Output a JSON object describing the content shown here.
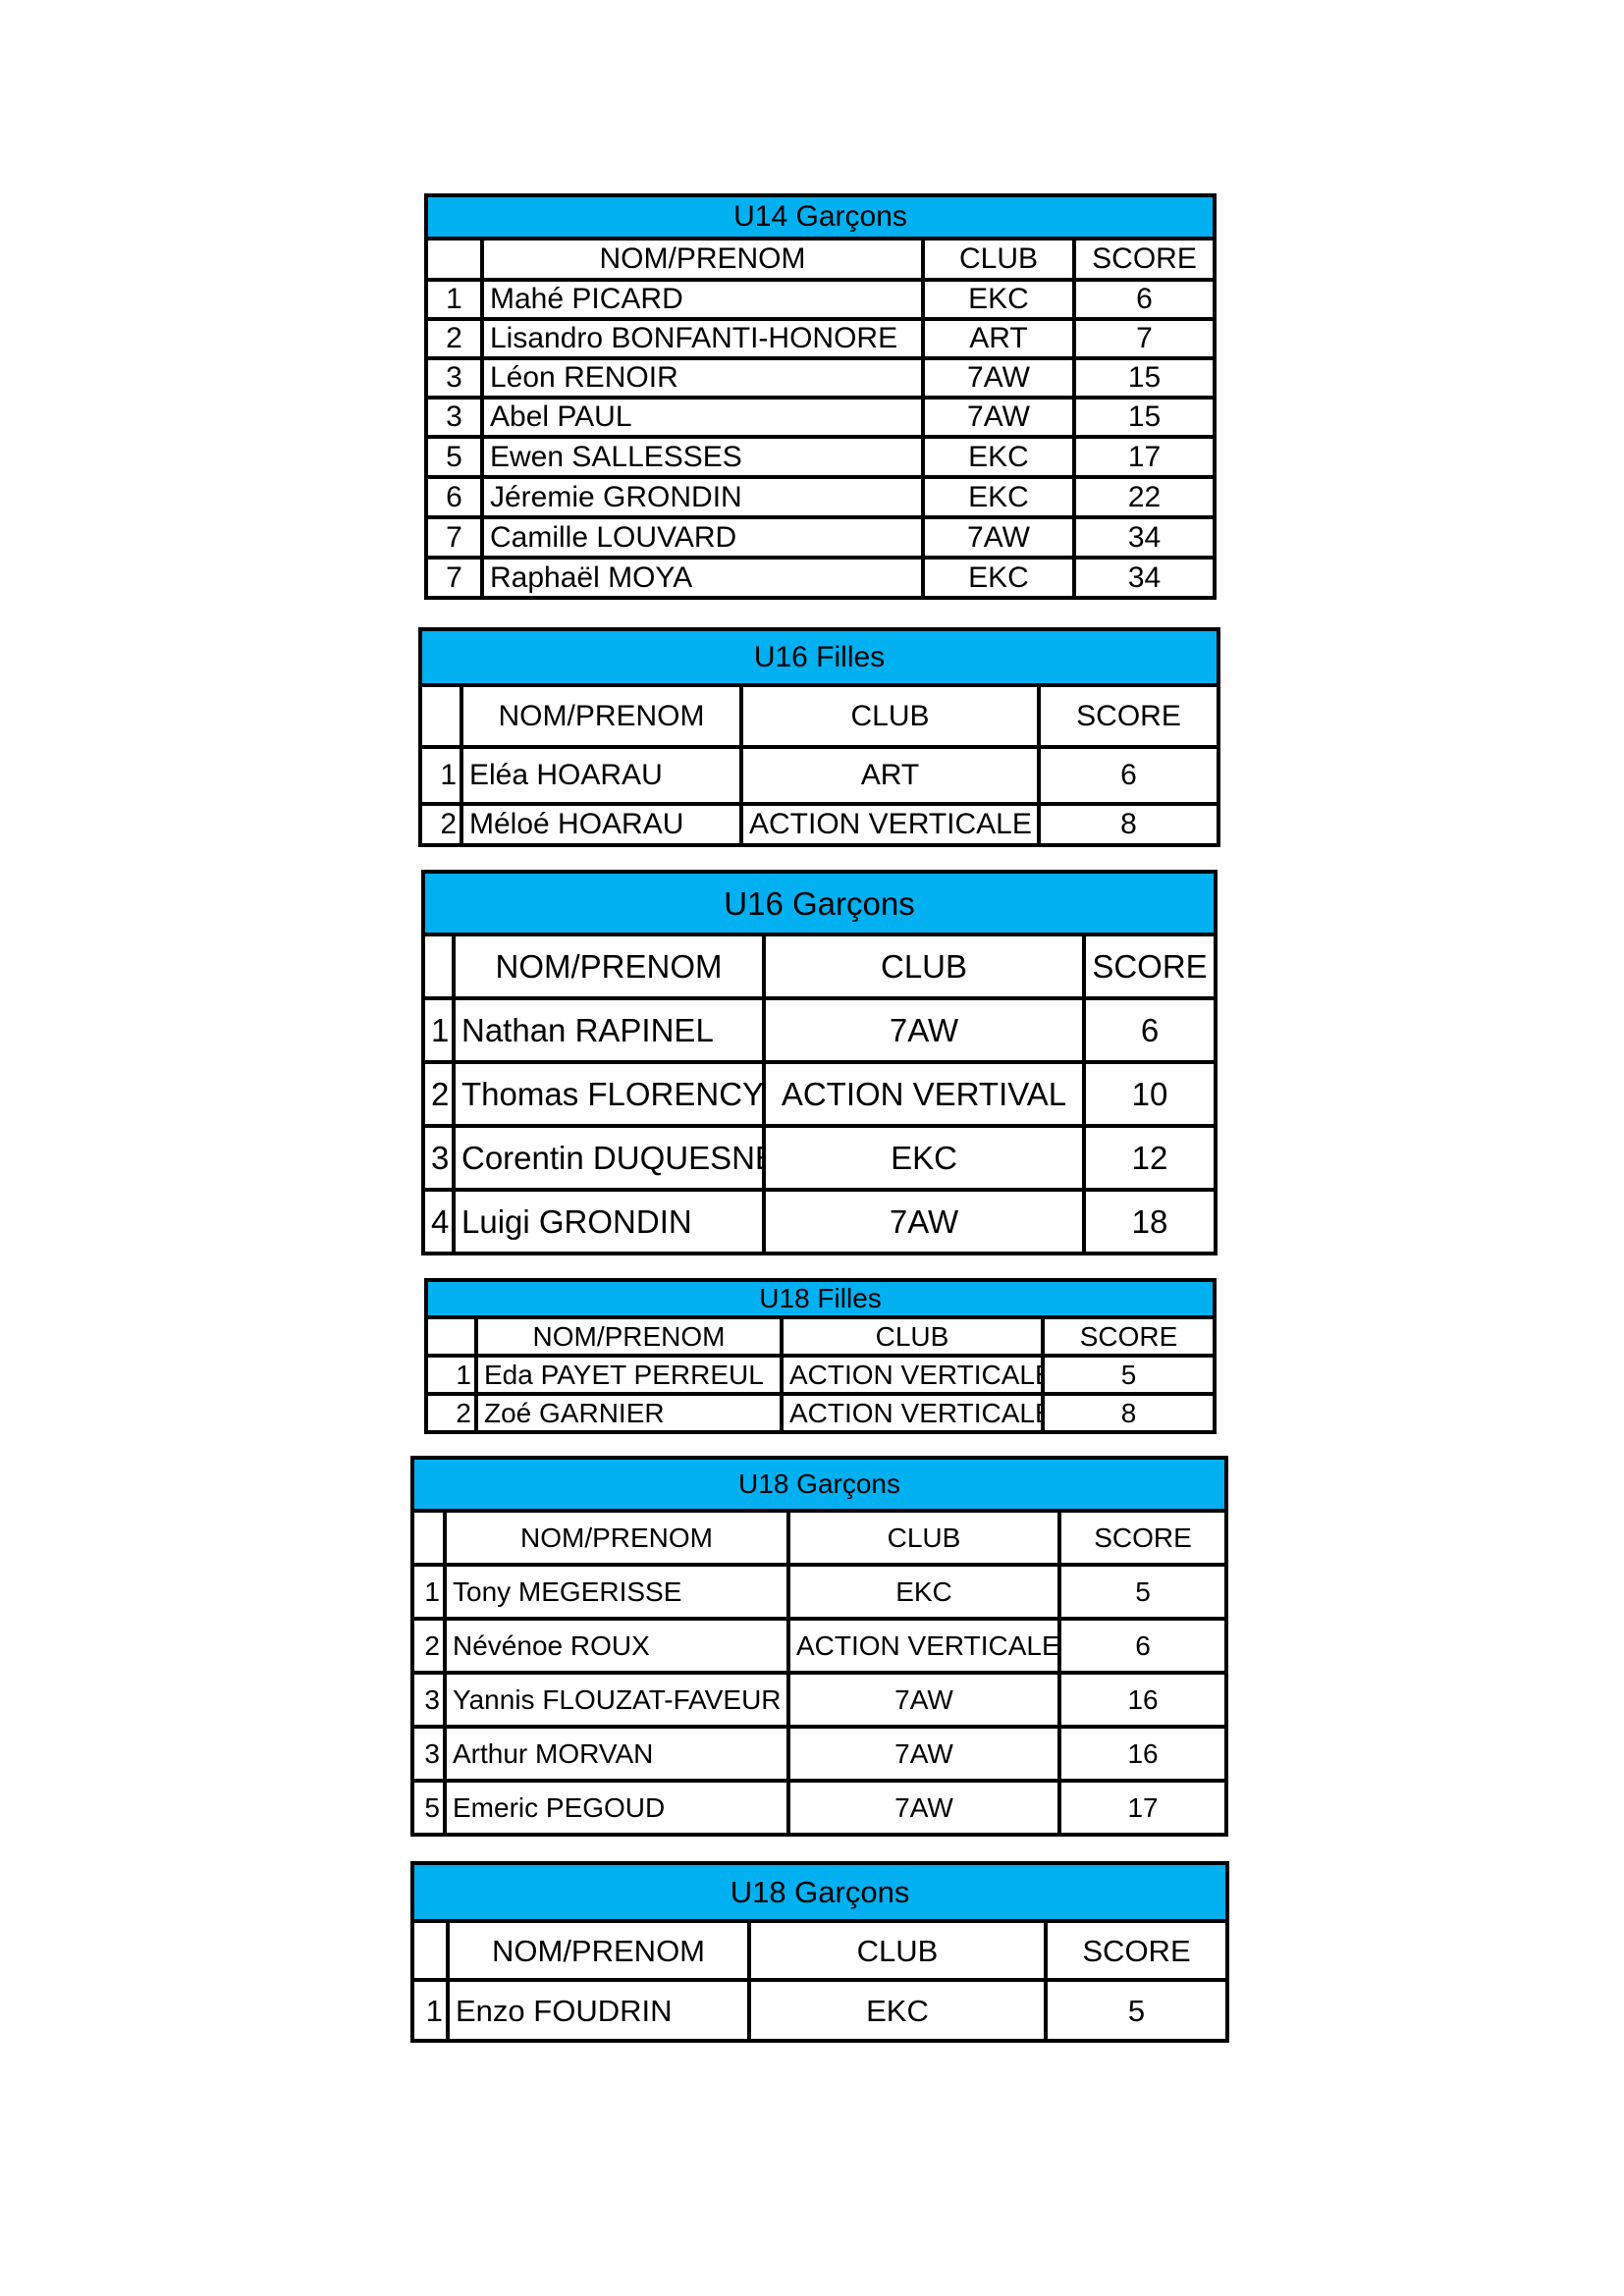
{
  "accent_color": "#00b0f0",
  "tables": [
    {
      "title": "U14 Garçons",
      "headers": [
        "",
        "NOM/PRENOM",
        "CLUB",
        "SCORE"
      ],
      "rows": [
        [
          "1",
          "Mahé PICARD",
          "EKC",
          "6"
        ],
        [
          "2",
          "Lisandro BONFANTI-HONORE",
          "ART",
          "7"
        ],
        [
          "3",
          "Léon RENOIR",
          "7AW",
          "15"
        ],
        [
          "3",
          "Abel PAUL",
          "7AW",
          "15"
        ],
        [
          "5",
          "Ewen SALLESSES",
          "EKC",
          "17"
        ],
        [
          "6",
          "Jéremie GRONDIN",
          "EKC",
          "22"
        ],
        [
          "7",
          "Camille LOUVARD",
          "7AW",
          "34"
        ],
        [
          "7",
          "Raphaël MOYA",
          "EKC",
          "34"
        ]
      ]
    },
    {
      "title": "U16 Filles",
      "headers": [
        "",
        "NOM/PRENOM",
        "CLUB",
        "SCORE"
      ],
      "rows": [
        [
          "1",
          "Eléa HOARAU",
          "ART",
          "6"
        ],
        [
          "2",
          "Méloé HOARAU",
          "ACTION VERTICALE",
          "8"
        ]
      ]
    },
    {
      "title": "U16 Garçons",
      "headers": [
        "",
        "NOM/PRENOM",
        "CLUB",
        "SCORE"
      ],
      "rows": [
        [
          "1",
          "Nathan RAPINEL",
          "7AW",
          "6"
        ],
        [
          "2",
          "Thomas FLORENCY",
          "ACTION VERTIVAL",
          "10"
        ],
        [
          "3",
          "Corentin DUQUESNE",
          "EKC",
          "12"
        ],
        [
          "4",
          "Luigi GRONDIN",
          "7AW",
          "18"
        ]
      ]
    },
    {
      "title": "U18 Filles",
      "headers": [
        "",
        "NOM/PRENOM",
        "CLUB",
        "SCORE"
      ],
      "rows": [
        [
          "1",
          "Eda PAYET PERREUL",
          "ACTION VERTICALE",
          "5"
        ],
        [
          "2",
          "Zoé GARNIER",
          "ACTION VERTICALE",
          "8"
        ]
      ]
    },
    {
      "title": "U18 Garçons",
      "headers": [
        "",
        "NOM/PRENOM",
        "CLUB",
        "SCORE"
      ],
      "rows": [
        [
          "1",
          "Tony MEGERISSE",
          "EKC",
          "5"
        ],
        [
          "2",
          "Névénoe ROUX",
          "ACTION VERTICALE",
          "6"
        ],
        [
          "3",
          "Yannis FLOUZAT-FAVEUR",
          "7AW",
          "16"
        ],
        [
          "3",
          "Arthur MORVAN",
          "7AW",
          "16"
        ],
        [
          "5",
          "Emeric PEGOUD",
          "7AW",
          "17"
        ]
      ]
    },
    {
      "title": "U18 Garçons",
      "headers": [
        "",
        "NOM/PRENOM",
        "CLUB",
        "SCORE"
      ],
      "rows": [
        [
          "1",
          "Enzo FOUDRIN",
          "EKC",
          "5"
        ]
      ]
    }
  ]
}
